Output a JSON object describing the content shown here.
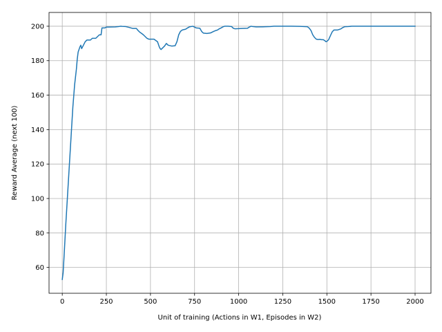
{
  "chart_data": {
    "type": "line",
    "title": "",
    "xlabel": "Unit of training (Actions in W1, Episodes in W2)",
    "ylabel": "Reward Average (next 100)",
    "xlim": [
      -75,
      2090
    ],
    "ylim": [
      45,
      208
    ],
    "xticks": [
      0,
      250,
      500,
      750,
      1000,
      1250,
      1500,
      1750,
      2000
    ],
    "xtick_labels": [
      "0",
      "250",
      "500",
      "750",
      "1000",
      "1250",
      "1500",
      "1750",
      "2000"
    ],
    "yticks": [
      60,
      80,
      100,
      120,
      140,
      160,
      180,
      200
    ],
    "ytick_labels": [
      "60",
      "80",
      "100",
      "120",
      "140",
      "160",
      "180",
      "200"
    ],
    "grid": true,
    "series": [
      {
        "color": "#1f77b4",
        "x": [
          0,
          5,
          10,
          20,
          30,
          40,
          50,
          60,
          70,
          80,
          85,
          90,
          100,
          105,
          110,
          120,
          125,
          130,
          140,
          150,
          160,
          170,
          180,
          190,
          200,
          210,
          220,
          225,
          230,
          240,
          245,
          250,
          260,
          300,
          320,
          330,
          340,
          360,
          380,
          390,
          400,
          420,
          430,
          440,
          450,
          460,
          470,
          480,
          490,
          500,
          520,
          540,
          550,
          555,
          560,
          570,
          580,
          590,
          600,
          620,
          640,
          650,
          660,
          670,
          680,
          700,
          710,
          720,
          730,
          740,
          760,
          780,
          790,
          800,
          820,
          840,
          860,
          870,
          880,
          890,
          900,
          910,
          920,
          940,
          960,
          970,
          980,
          1000,
          1020,
          1050,
          1060,
          1070,
          1080,
          1100,
          1150,
          1180,
          1200,
          1250,
          1300,
          1350,
          1390,
          1400,
          1410,
          1420,
          1430,
          1440,
          1450,
          1460,
          1470,
          1480,
          1490,
          1495,
          1500,
          1510,
          1520,
          1530,
          1540,
          1560,
          1580,
          1590,
          1600,
          1620,
          1640,
          1660,
          1700,
          1800,
          1900,
          2000
        ],
        "y": [
          53,
          57,
          66,
          85,
          102,
          119,
          136,
          153,
          166,
          175,
          181,
          185,
          188,
          189,
          187,
          189,
          190,
          191,
          192,
          192,
          192,
          193,
          193,
          193,
          194,
          195,
          195,
          199,
          199,
          199,
          199.2,
          199.5,
          199.5,
          199.6,
          199.8,
          200,
          199.9,
          199.8,
          199.3,
          199,
          198.7,
          198.7,
          197.5,
          196.5,
          195.8,
          195,
          194,
          193,
          192.5,
          192.5,
          192.5,
          191,
          188,
          187,
          186.5,
          187.5,
          188.5,
          190,
          189,
          188.5,
          188.7,
          191,
          195,
          197,
          197.8,
          198.3,
          199,
          199.6,
          199.8,
          200,
          199,
          198.8,
          197,
          196,
          195.8,
          196.1,
          197.1,
          197.5,
          197.8,
          198.5,
          199,
          199.6,
          200,
          200,
          199.8,
          198.8,
          198.5,
          198.6,
          198.7,
          198.8,
          199.5,
          200,
          199.8,
          199.6,
          199.7,
          199.8,
          200,
          200,
          200,
          199.9,
          199.7,
          198.9,
          197.5,
          195,
          193.5,
          192.5,
          192.3,
          192.4,
          192.2,
          192.2,
          191.5,
          191,
          191.2,
          192.2,
          194.5,
          196.7,
          197.8,
          197.8,
          198.5,
          199.2,
          199.7,
          199.8,
          200,
          200,
          200,
          200,
          200,
          200
        ]
      }
    ]
  }
}
